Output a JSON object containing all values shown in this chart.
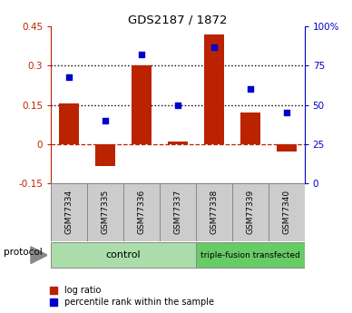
{
  "title": "GDS2187 / 1872",
  "samples": [
    "GSM77334",
    "GSM77335",
    "GSM77336",
    "GSM77337",
    "GSM77338",
    "GSM77339",
    "GSM77340"
  ],
  "log_ratio": [
    0.155,
    -0.085,
    0.3,
    0.01,
    0.42,
    0.12,
    -0.03
  ],
  "percentile_rank": [
    68,
    40,
    82,
    50,
    87,
    60,
    45
  ],
  "ylim_left": [
    -0.15,
    0.45
  ],
  "ylim_right": [
    0,
    100
  ],
  "yticks_left": [
    -0.15,
    0,
    0.15,
    0.3,
    0.45
  ],
  "yticks_right": [
    0,
    25,
    50,
    75,
    100
  ],
  "ytick_labels_left": [
    "-0.15",
    "0",
    "0.15",
    "0.3",
    "0.45"
  ],
  "ytick_labels_right": [
    "0",
    "25",
    "50",
    "75",
    "100%"
  ],
  "hlines_dotted": [
    0.15,
    0.3
  ],
  "hline_dash": 0.0,
  "bar_color": "#bb2200",
  "dot_color": "#0000cc",
  "control_samples": [
    0,
    1,
    2,
    3
  ],
  "triple_samples": [
    4,
    5,
    6
  ],
  "control_label": "control",
  "triple_label": "triple-fusion transfected",
  "protocol_label": "protocol",
  "legend_bar_label": "log ratio",
  "legend_dot_label": "percentile rank within the sample",
  "control_color": "#aaddaa",
  "triple_color": "#66cc66",
  "label_area_color": "#cccccc",
  "bar_width": 0.55
}
